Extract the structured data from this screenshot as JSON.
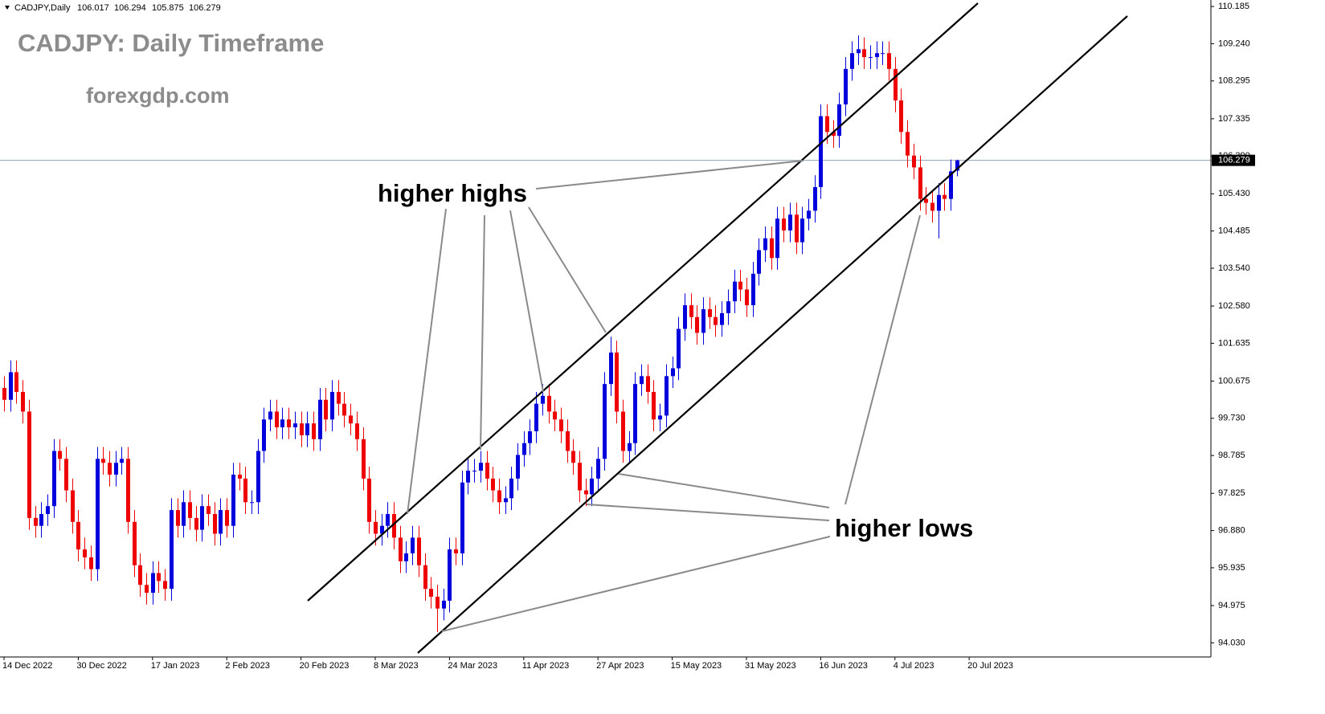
{
  "chart_data": {
    "type": "candlestick",
    "title": "CADJPY: Daily Timeframe",
    "subtitle": "forexgdp.com",
    "symbol": "CADJPY,Daily",
    "annotations": [
      "higher highs",
      "higher lows"
    ],
    "up_color": "#0000dd",
    "down_color": "#ee0000",
    "current_price": 106.279,
    "open": [
      100.5,
      100.2,
      100.9,
      100.4,
      99.9,
      97.2,
      97.0,
      97.3,
      97.5,
      98.9,
      98.7,
      97.9,
      97.1,
      96.4,
      96.2,
      95.9,
      98.7,
      98.6,
      98.3,
      98.6,
      98.7,
      97.1,
      96.0,
      95.5,
      95.3,
      95.8,
      95.6,
      95.4,
      97.4,
      97.0,
      97.6,
      97.2,
      96.9,
      97.5,
      97.3,
      96.8,
      97.4,
      97.0,
      98.3,
      98.2,
      97.6,
      97.6,
      98.9,
      99.7,
      99.9,
      99.5,
      99.7,
      99.5,
      99.6,
      99.3,
      99.6,
      99.2,
      100.2,
      99.7,
      100.4,
      100.1,
      99.8,
      99.6,
      99.2,
      98.2,
      97.1,
      96.8,
      97.0,
      97.3,
      96.7,
      96.1,
      96.3,
      96.7,
      96.0,
      95.4,
      95.2,
      94.9,
      95.1,
      96.4,
      96.3,
      98.1,
      98.4,
      98.4,
      98.6,
      98.2,
      97.9,
      97.6,
      97.7,
      98.2,
      98.8,
      99.1,
      99.4,
      100.1,
      100.3,
      99.9,
      99.7,
      99.4,
      98.9,
      98.6,
      97.9,
      97.8,
      98.2,
      98.7,
      100.6,
      101.4,
      99.9,
      98.9,
      99.1,
      100.6,
      100.8,
      100.4,
      99.7,
      99.8,
      100.8,
      101.0,
      102.0,
      102.6,
      102.3,
      101.9,
      102.5,
      102.3,
      102.1,
      102.4,
      102.7,
      103.2,
      103.0,
      102.6,
      103.4,
      104.0,
      104.3,
      103.8,
      104.8,
      104.5,
      104.9,
      104.2,
      104.8,
      105.0,
      105.6,
      107.4,
      107.0,
      106.9,
      107.7,
      108.6,
      109.0,
      109.1,
      108.9,
      108.9,
      109.0,
      109.0,
      108.6,
      107.8,
      107.0,
      106.4,
      106.1,
      105.3,
      105.2,
      105.0,
      105.4,
      105.3,
      106.017
    ],
    "high": [
      100.8,
      101.2,
      101.2,
      100.7,
      100.2,
      97.5,
      97.6,
      97.8,
      99.2,
      99.2,
      99.0,
      98.2,
      97.4,
      96.7,
      96.5,
      99.0,
      99.0,
      98.9,
      98.9,
      99.0,
      99.0,
      97.4,
      96.3,
      95.8,
      96.1,
      96.1,
      95.9,
      97.7,
      97.7,
      97.9,
      97.9,
      97.5,
      97.8,
      97.8,
      97.6,
      97.7,
      97.7,
      98.6,
      98.6,
      98.5,
      97.9,
      99.2,
      100.0,
      100.2,
      100.2,
      100.0,
      100.0,
      99.9,
      99.9,
      99.9,
      99.9,
      100.5,
      100.5,
      100.7,
      100.7,
      100.4,
      100.1,
      99.9,
      99.5,
      98.5,
      97.4,
      97.3,
      97.6,
      97.6,
      97.0,
      96.6,
      97.0,
      97.0,
      96.3,
      95.7,
      95.5,
      95.4,
      96.7,
      96.7,
      98.4,
      98.7,
      98.7,
      98.9,
      98.9,
      98.5,
      98.2,
      98.0,
      98.5,
      99.1,
      99.4,
      99.7,
      100.4,
      100.6,
      100.6,
      100.2,
      100.0,
      99.7,
      99.2,
      98.9,
      98.2,
      98.5,
      99.0,
      100.9,
      101.8,
      101.7,
      100.2,
      99.4,
      100.9,
      101.1,
      101.1,
      100.7,
      100.1,
      101.1,
      101.3,
      102.3,
      102.9,
      102.9,
      102.6,
      102.8,
      102.8,
      102.6,
      102.7,
      103.0,
      103.5,
      103.5,
      103.3,
      103.7,
      104.3,
      104.6,
      104.6,
      105.1,
      105.1,
      105.2,
      105.2,
      105.1,
      105.3,
      105.9,
      107.7,
      107.7,
      107.3,
      108.0,
      108.9,
      109.3,
      109.45,
      109.4,
      109.2,
      109.3,
      109.3,
      109.3,
      108.9,
      108.1,
      107.3,
      106.7,
      106.4,
      105.6,
      105.5,
      105.7,
      105.7,
      106.3,
      106.294
    ],
    "low": [
      99.9,
      99.9,
      100.1,
      99.6,
      96.9,
      96.7,
      96.7,
      97.0,
      97.2,
      98.4,
      97.6,
      96.8,
      96.1,
      95.9,
      95.6,
      95.6,
      98.3,
      98.0,
      98.0,
      98.3,
      96.8,
      95.7,
      95.2,
      95.0,
      95.0,
      95.3,
      95.1,
      95.1,
      96.7,
      96.7,
      96.9,
      96.6,
      96.6,
      97.0,
      96.5,
      96.5,
      96.7,
      96.7,
      97.9,
      97.3,
      97.3,
      97.3,
      98.6,
      99.4,
      99.2,
      99.2,
      99.2,
      99.2,
      99.0,
      99.0,
      98.9,
      98.9,
      99.4,
      99.4,
      99.8,
      99.5,
      99.3,
      98.9,
      97.9,
      96.8,
      96.5,
      96.5,
      96.7,
      96.4,
      95.8,
      95.8,
      96.0,
      95.7,
      95.1,
      94.9,
      94.3,
      94.6,
      94.8,
      96.0,
      96.0,
      97.8,
      98.1,
      98.1,
      97.9,
      97.6,
      97.3,
      97.3,
      97.4,
      97.9,
      98.5,
      98.8,
      99.1,
      99.8,
      99.6,
      99.4,
      99.1,
      98.6,
      98.3,
      97.6,
      97.5,
      97.5,
      97.9,
      98.4,
      100.3,
      99.6,
      98.6,
      98.6,
      98.8,
      100.3,
      100.1,
      99.4,
      99.4,
      99.5,
      100.5,
      100.7,
      101.7,
      102.0,
      101.6,
      101.6,
      102.0,
      101.8,
      101.8,
      102.1,
      102.4,
      102.7,
      102.3,
      102.3,
      103.1,
      103.7,
      103.5,
      103.5,
      104.2,
      104.2,
      103.9,
      103.9,
      104.5,
      104.7,
      105.3,
      106.7,
      106.6,
      106.6,
      107.4,
      108.3,
      108.7,
      108.6,
      108.6,
      108.6,
      108.7,
      108.3,
      107.5,
      106.7,
      106.1,
      105.8,
      105.0,
      104.9,
      104.7,
      104.3,
      105.0,
      105.0,
      105.875
    ],
    "close": [
      100.2,
      100.9,
      100.4,
      99.9,
      97.2,
      97.0,
      97.3,
      97.5,
      98.9,
      98.7,
      97.9,
      97.1,
      96.4,
      96.2,
      95.9,
      98.7,
      98.6,
      98.3,
      98.6,
      98.7,
      97.1,
      96.0,
      95.5,
      95.3,
      95.8,
      95.6,
      95.4,
      97.4,
      97.0,
      97.6,
      97.2,
      96.9,
      97.5,
      97.3,
      96.8,
      97.4,
      97.0,
      98.3,
      98.2,
      97.6,
      97.6,
      98.9,
      99.7,
      99.9,
      99.5,
      99.7,
      99.5,
      99.6,
      99.3,
      99.6,
      99.2,
      100.2,
      99.7,
      100.4,
      100.1,
      99.8,
      99.6,
      99.2,
      98.2,
      97.1,
      96.8,
      97.0,
      97.3,
      96.7,
      96.1,
      96.3,
      96.7,
      96.0,
      95.4,
      95.2,
      94.9,
      95.1,
      96.4,
      96.3,
      98.1,
      98.4,
      98.4,
      98.6,
      98.2,
      97.9,
      97.6,
      97.7,
      98.2,
      98.8,
      99.1,
      99.4,
      100.1,
      100.3,
      99.9,
      99.7,
      99.4,
      98.9,
      98.6,
      97.9,
      97.8,
      98.2,
      98.7,
      100.6,
      101.4,
      99.9,
      98.9,
      99.1,
      100.6,
      100.8,
      100.4,
      99.7,
      99.8,
      100.8,
      101.0,
      102.0,
      102.6,
      102.3,
      101.9,
      102.5,
      102.3,
      102.1,
      102.4,
      102.7,
      103.2,
      103.0,
      102.6,
      103.4,
      104.0,
      104.3,
      103.8,
      104.8,
      104.5,
      104.9,
      104.2,
      104.8,
      105.0,
      105.6,
      107.4,
      107.0,
      106.9,
      107.7,
      108.6,
      109.0,
      109.1,
      108.9,
      108.9,
      109.0,
      109.0,
      108.6,
      107.8,
      107.0,
      106.4,
      106.1,
      105.3,
      105.2,
      105.0,
      105.4,
      105.3,
      106.0,
      106.279
    ],
    "xlim": [
      -0.65,
      195.07
    ],
    "xticks": [
      {
        "value": 0,
        "label": "14 Dec 2022"
      },
      {
        "value": 12,
        "label": "30 Dec 2022"
      },
      {
        "value": 24,
        "label": "17 Jan 2023"
      },
      {
        "value": 36,
        "label": "2 Feb 2023"
      },
      {
        "value": 48,
        "label": "20 Feb 2023"
      },
      {
        "value": 60,
        "label": "8 Mar 2023"
      },
      {
        "value": 72,
        "label": "24 Mar 2023"
      },
      {
        "value": 84,
        "label": "11 Apr 2023"
      },
      {
        "value": 96,
        "label": "27 Apr 2023"
      },
      {
        "value": 108,
        "label": "15 May 2023"
      },
      {
        "value": 120,
        "label": "31 May 2023"
      },
      {
        "value": 132,
        "label": "16 Jun 2023"
      },
      {
        "value": 144,
        "label": "4 Jul 2023"
      },
      {
        "value": 156,
        "label": "20 Jul 2023"
      }
    ],
    "ylim": [
      93.67,
      110.35
    ],
    "yticks": [
      110.185,
      {
        "value": 109.24,
        "label": "109.240"
      },
      108.295,
      107.335,
      {
        "value": 106.39,
        "label": "106.390"
      },
      {
        "value": 105.43,
        "label": "105.430"
      },
      104.485,
      {
        "value": 103.54,
        "label": "103.540"
      },
      {
        "value": 102.58,
        "label": "102.580"
      },
      101.635,
      100.675,
      {
        "value": 99.73,
        "label": "99.730"
      },
      98.785,
      97.825,
      {
        "value": 96.88,
        "label": "96.880"
      },
      95.935,
      94.975,
      {
        "value": 94.03,
        "label": "94.030"
      }
    ]
  }
}
